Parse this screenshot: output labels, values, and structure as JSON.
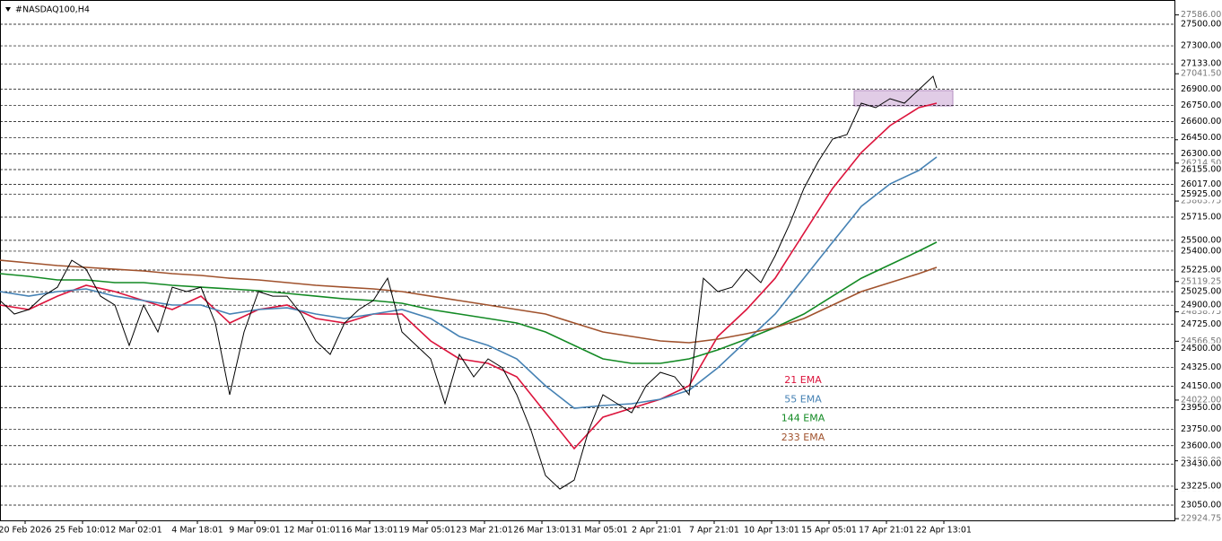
{
  "chart_data": {
    "type": "line",
    "title": "#NASDAQ100,H4",
    "xlim": [
      0,
      327.5
    ],
    "ylim": [
      22909,
      27724
    ],
    "xticks": [
      {
        "value": 7,
        "label": "20 Feb 2026"
      },
      {
        "value": 23,
        "label": "25 Feb 10:01"
      },
      {
        "value": 38,
        "label": "2 Mar 02:01"
      },
      {
        "value": 55,
        "label": "4 Mar 18:01"
      },
      {
        "value": 71,
        "label": "9 Mar 09:01"
      },
      {
        "value": 87,
        "label": "12 Mar 01:01"
      },
      {
        "value": 103,
        "label": "16 Mar 13:01"
      },
      {
        "value": 119,
        "label": "19 Mar 05:01"
      },
      {
        "value": 135,
        "label": "23 Mar 21:01"
      },
      {
        "value": 151,
        "label": "26 Mar 13:01"
      },
      {
        "value": 167,
        "label": "31 Mar 05:01"
      },
      {
        "value": 183,
        "label": "2 Apr 21:01"
      },
      {
        "value": 199,
        "label": "7 Apr 21:01"
      },
      {
        "value": 215,
        "label": "10 Apr 13:01"
      },
      {
        "value": 231,
        "label": "15 Apr 05:01"
      },
      {
        "value": 247,
        "label": "17 Apr 21:01"
      },
      {
        "value": 263,
        "label": "22 Apr 13:01"
      }
    ],
    "yticks": [
      {
        "value": 27586,
        "label": "27586.00"
      },
      {
        "value": 27041.5,
        "label": "27041.50"
      },
      {
        "value": 26430.75,
        "label": "26430.75"
      },
      {
        "value": 26214.5,
        "label": "26214.50"
      },
      {
        "value": 25863.75,
        "label": "25863.75"
      },
      {
        "value": 25119.25,
        "label": "25119.25"
      },
      {
        "value": 24838.75,
        "label": "24838.75"
      },
      {
        "value": 24566.5,
        "label": "24566.50"
      },
      {
        "value": 24022,
        "label": "24022.00"
      },
      {
        "value": 23460,
        "label": "23460.00"
      },
      {
        "value": 23197,
        "label": "23197.00"
      },
      {
        "value": 22924.75,
        "label": "22924.75"
      }
    ],
    "levels": [
      {
        "value": 27500,
        "label": "27500.00"
      },
      {
        "value": 27300,
        "label": "27300.00"
      },
      {
        "value": 27133,
        "label": "27133.00"
      },
      {
        "value": 26900,
        "label": "26900.00"
      },
      {
        "value": 26750,
        "label": "26750.00"
      },
      {
        "value": 26600,
        "label": "26600.00"
      },
      {
        "value": 26450,
        "label": "26450.00"
      },
      {
        "value": 26300,
        "label": "26300.00"
      },
      {
        "value": 26155,
        "label": "26155.00"
      },
      {
        "value": 26017,
        "label": "26017.00"
      },
      {
        "value": 25925,
        "label": "25925.00"
      },
      {
        "value": 25715,
        "label": "25715.00"
      },
      {
        "value": 25500,
        "label": "25500.00"
      },
      {
        "value": 25400,
        "label": "25400.00"
      },
      {
        "value": 25225,
        "label": "25225.00"
      },
      {
        "value": 25025,
        "label": "25025.00"
      },
      {
        "value": 24900,
        "label": "24900.00"
      },
      {
        "value": 24725,
        "label": "24725.00"
      },
      {
        "value": 24500,
        "label": "24500.00"
      },
      {
        "value": 24325,
        "label": "24325.00"
      },
      {
        "value": 24150,
        "label": "24150.00"
      },
      {
        "value": 23950,
        "label": "23950.00"
      },
      {
        "value": 23750,
        "label": "23750.00"
      },
      {
        "value": 23600,
        "label": "23600.00"
      },
      {
        "value": 23430,
        "label": "23430.00"
      },
      {
        "value": 23225,
        "label": "23225.00"
      },
      {
        "value": 23050,
        "label": "23050.00"
      }
    ],
    "zone": {
      "x": [
        238,
        265.5
      ],
      "y": [
        26744,
        26886
      ],
      "color": "#d9bfe0"
    },
    "price": {
      "color": "#000000",
      "x": [
        0,
        4,
        8,
        12,
        16,
        20,
        24,
        28,
        32,
        36,
        40,
        44,
        48,
        52,
        56,
        60,
        64,
        68,
        72,
        76,
        80,
        84,
        88,
        92,
        96,
        100,
        104,
        108,
        112,
        116,
        120,
        124,
        128,
        132,
        136,
        140,
        144,
        148,
        152,
        156,
        160,
        164,
        168,
        172,
        176,
        180,
        184,
        188,
        192,
        196,
        200,
        204,
        208,
        212,
        216,
        220,
        224,
        228,
        232,
        236,
        240,
        244,
        248,
        252,
        256,
        260,
        261
      ],
      "values": [
        24943,
        24818,
        24860,
        24984,
        25067,
        25316,
        25233,
        24984,
        24901,
        24528,
        24901,
        24652,
        25067,
        25026,
        25067,
        24735,
        24071,
        24652,
        25026,
        24984,
        24984,
        24818,
        24569,
        24445,
        24735,
        24860,
        24943,
        25150,
        24652,
        24528,
        24403,
        23988,
        24445,
        24237,
        24403,
        24320,
        24071,
        23739,
        23324,
        23199,
        23282,
        23739,
        24071,
        23988,
        23905,
        24154,
        24279,
        24237,
        24071,
        25150,
        25026,
        25067,
        25233,
        25109,
        25358,
        25649,
        25981,
        26230,
        26437,
        26479,
        26769,
        26728,
        26811,
        26769,
        26894,
        27018,
        26910
      ]
    },
    "series": [
      {
        "name": "21 EMA",
        "color": "#dc143c",
        "x": [
          0,
          8,
          16,
          24,
          32,
          40,
          48,
          56,
          64,
          72,
          80,
          88,
          96,
          104,
          112,
          120,
          128,
          136,
          144,
          152,
          160,
          168,
          176,
          184,
          192,
          200,
          208,
          216,
          224,
          232,
          240,
          248,
          256,
          261
        ],
        "values": [
          24901,
          24860,
          24984,
          25084,
          25026,
          24943,
          24860,
          24984,
          24735,
          24860,
          24901,
          24777,
          24735,
          24818,
          24818,
          24569,
          24403,
          24362,
          24237,
          23905,
          23573,
          23864,
          23947,
          24030,
          24154,
          24611,
          24860,
          25150,
          25566,
          25981,
          26313,
          26562,
          26728,
          26769
        ]
      },
      {
        "name": "55 EMA",
        "color": "#4682b4",
        "x": [
          0,
          8,
          16,
          24,
          32,
          40,
          48,
          56,
          64,
          72,
          80,
          88,
          96,
          104,
          112,
          120,
          128,
          136,
          144,
          152,
          160,
          168,
          176,
          184,
          192,
          200,
          208,
          216,
          224,
          232,
          240,
          248,
          256,
          261
        ],
        "values": [
          25026,
          24984,
          25026,
          25051,
          24984,
          24943,
          24901,
          24901,
          24818,
          24860,
          24876,
          24818,
          24777,
          24818,
          24860,
          24777,
          24611,
          24528,
          24403,
          24154,
          23947,
          23972,
          23988,
          24030,
          24113,
          24320,
          24569,
          24818,
          25150,
          25483,
          25815,
          26022,
          26147,
          26271
        ]
      },
      {
        "name": "144 EMA",
        "color": "#138a24",
        "x": [
          0,
          8,
          16,
          24,
          32,
          40,
          48,
          56,
          64,
          72,
          80,
          88,
          96,
          104,
          112,
          120,
          128,
          136,
          144,
          152,
          160,
          168,
          176,
          184,
          192,
          200,
          208,
          216,
          224,
          232,
          240,
          248,
          256,
          261
        ],
        "values": [
          25192,
          25167,
          25134,
          25134,
          25109,
          25109,
          25084,
          25067,
          25051,
          25034,
          25009,
          24984,
          24959,
          24943,
          24918,
          24860,
          24818,
          24777,
          24735,
          24652,
          24528,
          24403,
          24362,
          24362,
          24403,
          24486,
          24586,
          24694,
          24818,
          24984,
          25150,
          25275,
          25400,
          25483
        ]
      },
      {
        "name": "233 EMA",
        "color": "#a0522d",
        "x": [
          0,
          8,
          16,
          24,
          32,
          40,
          48,
          56,
          64,
          72,
          80,
          88,
          96,
          104,
          112,
          120,
          128,
          136,
          144,
          152,
          160,
          168,
          176,
          184,
          192,
          200,
          208,
          216,
          224,
          232,
          240,
          248,
          256,
          261
        ],
        "values": [
          25316,
          25292,
          25267,
          25250,
          25233,
          25217,
          25192,
          25175,
          25150,
          25134,
          25109,
          25084,
          25067,
          25051,
          25026,
          24984,
          24943,
          24901,
          24860,
          24818,
          24735,
          24652,
          24611,
          24569,
          24553,
          24586,
          24636,
          24694,
          24777,
          24901,
          25026,
          25109,
          25192,
          25250
        ]
      }
    ]
  }
}
